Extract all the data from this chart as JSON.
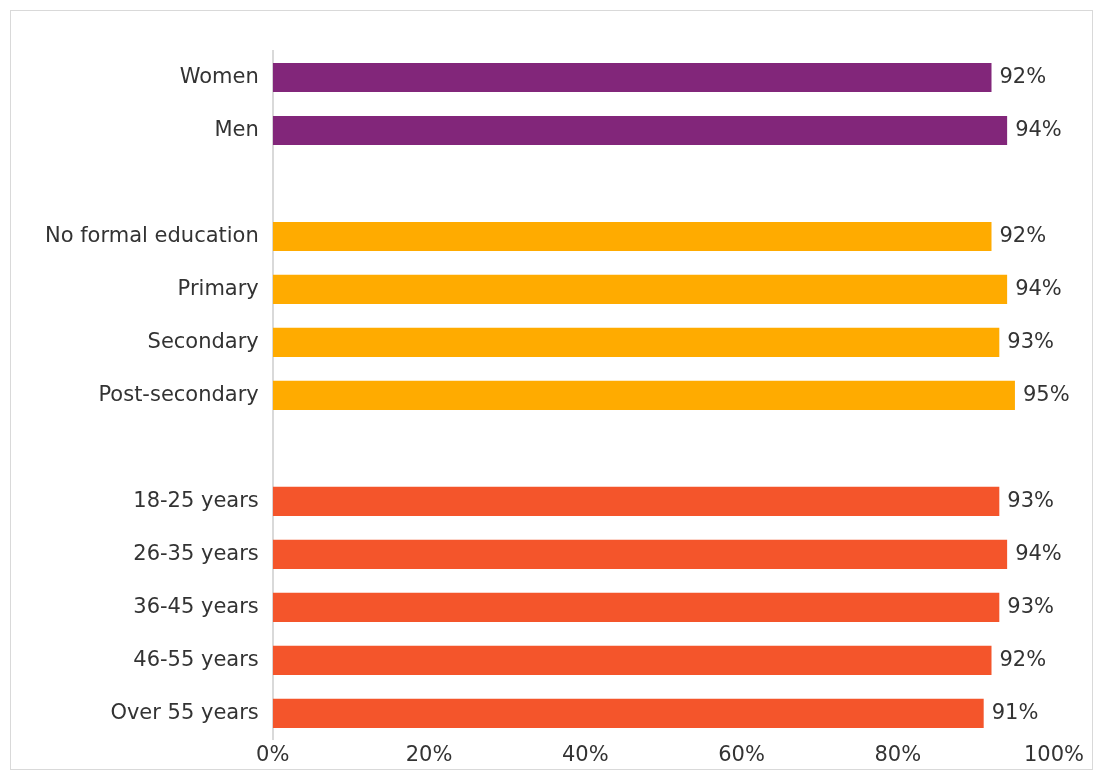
{
  "chart_data": {
    "type": "bar",
    "orientation": "horizontal",
    "categories": [
      "Women",
      "Men",
      null,
      "No formal education",
      "Primary",
      "Secondary",
      "Post-secondary",
      null,
      "18-25 years",
      "26-35 years",
      "36-45 years",
      "46-55 years",
      "Over 55 years"
    ],
    "values": [
      92,
      94,
      null,
      92,
      94,
      93,
      95,
      null,
      93,
      94,
      93,
      92,
      91
    ],
    "colors": [
      "#82267a",
      "#82267a",
      null,
      "#ffab00",
      "#ffab00",
      "#ffab00",
      "#ffab00",
      null,
      "#f4552b",
      "#f4552b",
      "#f4552b",
      "#f4552b",
      "#f4552b"
    ],
    "value_labels": [
      "92%",
      "94%",
      null,
      "92%",
      "94%",
      "93%",
      "95%",
      null,
      "93%",
      "94%",
      "93%",
      "92%",
      "91%"
    ],
    "xlim": [
      0,
      100
    ],
    "xticks": [
      {
        "value": 0,
        "label": "0%"
      },
      {
        "value": 20,
        "label": "20%"
      },
      {
        "value": 40,
        "label": "40%"
      },
      {
        "value": 60,
        "label": "60%"
      },
      {
        "value": 80,
        "label": "80%"
      },
      {
        "value": 100,
        "label": "100%"
      }
    ],
    "grid": false,
    "legend": false
  }
}
